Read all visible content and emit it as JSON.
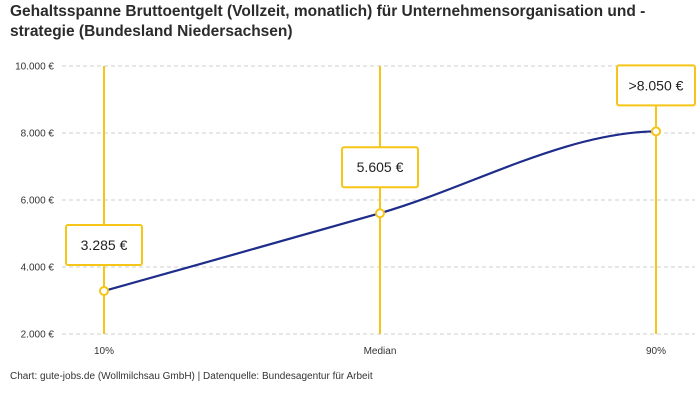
{
  "title": "Gehaltsspanne Bruttoentgelt (Vollzeit, monatlich) für Unternehmensorganisation und -strategie (Bundesland Niedersachsen)",
  "source": "Chart: gute-jobs.de (Wollmilchsau GmbH) | Datenquelle: Bundesagentur für Arbeit",
  "colors": {
    "line": "#1f2d8a",
    "accent": "#f5c518",
    "grid": "#cfcfcf"
  },
  "chart_data": {
    "type": "line",
    "categories": [
      "10%",
      "Median",
      "90%"
    ],
    "values": [
      3285,
      5605,
      8050
    ],
    "data_labels": [
      "3.285 €",
      "5.605 €",
      ">8.050 €"
    ],
    "ylim": [
      2000,
      10000
    ],
    "yticks": [
      2000,
      4000,
      6000,
      8000,
      10000
    ],
    "ytick_labels": [
      "2.000 €",
      "4.000 €",
      "6.000 €",
      "8.000 €",
      "10.000 €"
    ],
    "grid": true,
    "legend": "none"
  }
}
